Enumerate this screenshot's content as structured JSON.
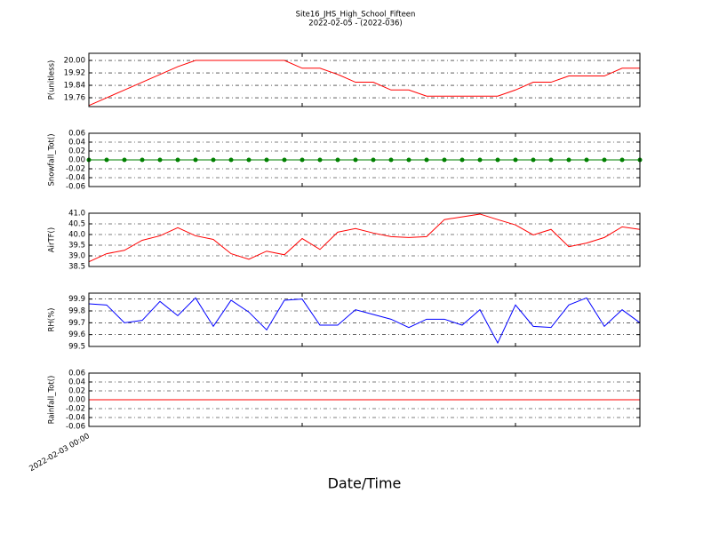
{
  "chart_data": [
    {
      "type": "line",
      "title": "Site16_JHS_High_School_Fifteen",
      "subtitle": "2022-02-05 - (2022-036)",
      "ylabel": "P(unitless)",
      "series": [
        {
          "color": "#ff0000",
          "values": [
            19.71,
            19.76,
            19.81,
            19.86,
            19.91,
            19.96,
            20.0,
            20.0,
            20.0,
            20.0,
            20.0,
            20.0,
            19.95,
            19.95,
            19.91,
            19.86,
            19.86,
            19.81,
            19.81,
            19.77,
            19.77,
            19.77,
            19.77,
            19.77,
            19.81,
            19.86,
            19.86,
            19.9,
            19.9,
            19.9,
            19.95,
            19.95
          ]
        }
      ],
      "ylim": [
        19.703,
        20.046
      ],
      "yticks": [
        19.76,
        19.84,
        19.92,
        {
          "value": 20,
          "label": "20.00"
        }
      ],
      "grid": true
    },
    {
      "type": "line",
      "ylabel": "Snowfall_Tot()",
      "markers": true,
      "series": [
        {
          "color": "#008000",
          "values": [
            0,
            0,
            0,
            0,
            0,
            0,
            0,
            0,
            0,
            0,
            0,
            0,
            0,
            0,
            0,
            0,
            0,
            0,
            0,
            0,
            0,
            0,
            0,
            0,
            0,
            0,
            0,
            0,
            0,
            0,
            0,
            0
          ]
        }
      ],
      "ylim": [
        -0.06,
        0.06
      ],
      "yticks": [
        -0.06,
        -0.04,
        -0.02,
        {
          "value": 0,
          "label": "0.00"
        },
        0.02,
        0.04,
        0.06
      ],
      "grid": true
    },
    {
      "type": "line",
      "ylabel": "AirTF()",
      "series": [
        {
          "color": "#ff0000",
          "values": [
            38.72,
            39.1,
            39.26,
            39.73,
            39.94,
            40.32,
            39.94,
            39.77,
            39.1,
            38.84,
            39.22,
            39.05,
            39.81,
            39.3,
            40.11,
            40.28,
            40.07,
            39.9,
            39.86,
            39.9,
            40.7,
            40.83,
            40.96,
            40.7,
            40.45,
            39.98,
            40.24,
            39.43,
            39.6,
            39.86,
            40.36,
            40.24
          ]
        }
      ],
      "ylim": [
        38.5,
        41.0
      ],
      "yticks": [
        38.5,
        {
          "value": 39,
          "label": "39.0"
        },
        39.5,
        {
          "value": 40,
          "label": "40.0"
        },
        40.5,
        {
          "value": 41,
          "label": "41.0"
        }
      ],
      "grid": true
    },
    {
      "type": "line",
      "ylabel": "RH(%)",
      "series": [
        {
          "color": "#0000ff",
          "values": [
            99.86,
            99.85,
            99.7,
            99.72,
            99.88,
            99.76,
            99.91,
            99.67,
            99.89,
            99.79,
            99.64,
            99.89,
            99.9,
            99.68,
            99.68,
            99.81,
            99.77,
            99.73,
            99.66,
            99.73,
            99.73,
            99.68,
            99.81,
            99.53,
            99.85,
            99.67,
            99.66,
            99.85,
            99.91,
            99.67,
            99.81,
            99.7
          ]
        }
      ],
      "ylim": [
        99.5,
        99.95
      ],
      "yticks": [
        99.5,
        99.6,
        99.7,
        99.8,
        99.9
      ],
      "grid": true
    },
    {
      "type": "line",
      "ylabel": "Rainfall_Tot()",
      "xlabel": "Date/Time",
      "categories": [
        "2022-02-03 00:00",
        null,
        null,
        null,
        null,
        null,
        null,
        null,
        null,
        null,
        null,
        null,
        null,
        null,
        null,
        null,
        null,
        null,
        null,
        null,
        null,
        null,
        null,
        null,
        null,
        null,
        null,
        null,
        null,
        null,
        null,
        null
      ],
      "series": [
        {
          "color": "#ff0000",
          "values": [
            0,
            0,
            0,
            0,
            0,
            0,
            0,
            0,
            0,
            0,
            0,
            0,
            0,
            0,
            0,
            0,
            0,
            0,
            0,
            0,
            0,
            0,
            0,
            0,
            0,
            0,
            0,
            0,
            0,
            0,
            0,
            0
          ]
        }
      ],
      "ylim": [
        -0.06,
        0.06
      ],
      "yticks": [
        -0.06,
        -0.04,
        -0.02,
        {
          "value": 0,
          "label": "0.00"
        },
        0.02,
        0.04,
        0.06
      ],
      "grid": true
    }
  ]
}
